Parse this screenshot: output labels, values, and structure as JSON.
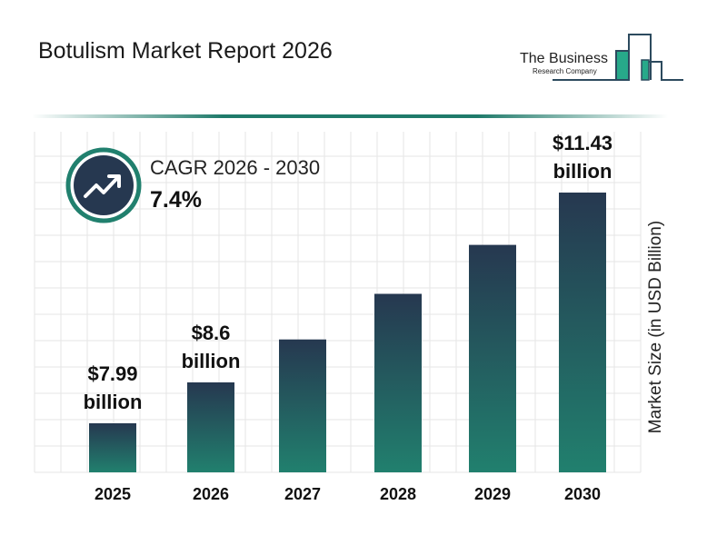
{
  "header": {
    "title": "Botulism Market Report 2026",
    "logo_line1": "The Business",
    "logo_line2": "Research Company"
  },
  "cagr": {
    "label": "CAGR 2026 - 2030",
    "value": "7.4%",
    "icon": "trending-up-icon"
  },
  "colors": {
    "bar_top": "#263850",
    "bar_bottom": "#21806e",
    "accent": "#1f7a6a",
    "icon_bg": "#263850"
  },
  "chart_data": {
    "type": "bar",
    "title": "",
    "xlabel": "",
    "ylabel": "Market Size (in USD Billion)",
    "categories": [
      "2025",
      "2026",
      "2027",
      "2028",
      "2029",
      "2030"
    ],
    "values": [
      7.99,
      8.6,
      9.24,
      9.92,
      10.65,
      11.43
    ],
    "data_labels": [
      {
        "index": 0,
        "line1": "$7.99",
        "line2": "billion"
      },
      {
        "index": 1,
        "line1": "$8.6",
        "line2": "billion"
      },
      {
        "index": 5,
        "line1": "$11.43",
        "line2": "billion"
      }
    ],
    "grid": true,
    "legend": "none"
  }
}
